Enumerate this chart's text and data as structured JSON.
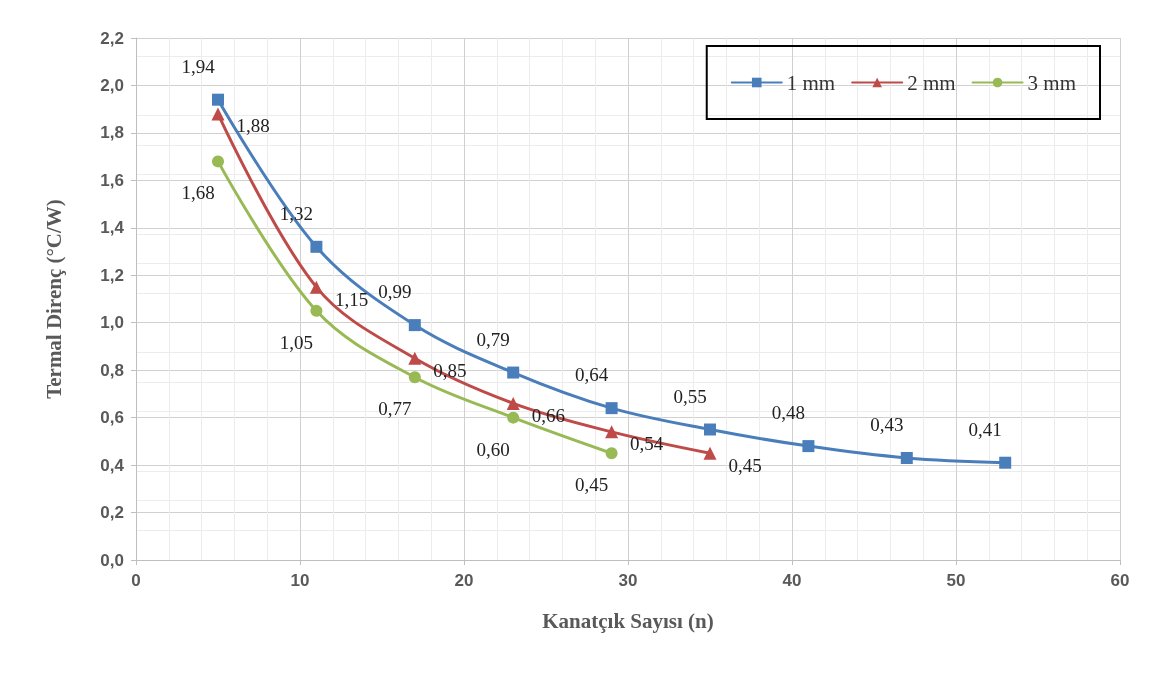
{
  "chart_data": {
    "type": "line",
    "xlabel": "Kanatçık Sayısı (n)",
    "ylabel": "Termal Direnç (°C/W)",
    "xlim": [
      0,
      60
    ],
    "xticks": [
      0,
      10,
      20,
      30,
      40,
      50,
      60
    ],
    "ylim": [
      0,
      2.2
    ],
    "yticks": [
      {
        "value": 0,
        "label": "0,0"
      },
      {
        "value": 0.2,
        "label": "0,2"
      },
      {
        "value": 0.4,
        "label": "0,4"
      },
      {
        "value": 0.6,
        "label": "0,6"
      },
      {
        "value": 0.8,
        "label": "0,8"
      },
      {
        "value": 1.0,
        "label": "1,0"
      },
      {
        "value": 1.2,
        "label": "1,2"
      },
      {
        "value": 1.4,
        "label": "1,4"
      },
      {
        "value": 1.6,
        "label": "1,6"
      },
      {
        "value": 1.8,
        "label": "1,8"
      },
      {
        "value": 2.0,
        "label": "2,0"
      },
      {
        "value": 2.2,
        "label": "2,2"
      }
    ],
    "grid": true,
    "legend": "top right",
    "series": [
      {
        "name": "1 mm",
        "color": "#4a7ebb",
        "marker": "square",
        "x": [
          5,
          11,
          17,
          23,
          29,
          35,
          41,
          47,
          53
        ],
        "values": [
          1.94,
          1.32,
          0.99,
          0.79,
          0.64,
          0.55,
          0.48,
          0.43,
          0.41
        ],
        "value_labels": [
          "1,94",
          "1,32",
          "0,99",
          "0,79",
          "0,64",
          "0,55",
          "0,48",
          "0,43",
          "0,41"
        ]
      },
      {
        "name": "2 mm",
        "color": "#be4b48",
        "marker": "triangle",
        "x": [
          5,
          11,
          17,
          23,
          29,
          35
        ],
        "values": [
          1.88,
          1.15,
          0.85,
          0.66,
          0.54,
          0.45
        ],
        "value_labels": [
          "1,88",
          "1,15",
          "0,85",
          "0,66",
          "0,54",
          "0,45"
        ]
      },
      {
        "name": "3 mm",
        "color": "#98b954",
        "marker": "circle",
        "x": [
          5,
          11,
          17,
          23,
          29
        ],
        "values": [
          1.68,
          1.05,
          0.77,
          0.6,
          0.45
        ],
        "value_labels": [
          "1,68",
          "1,05",
          "0,77",
          "0,60",
          "0,45"
        ]
      }
    ]
  }
}
